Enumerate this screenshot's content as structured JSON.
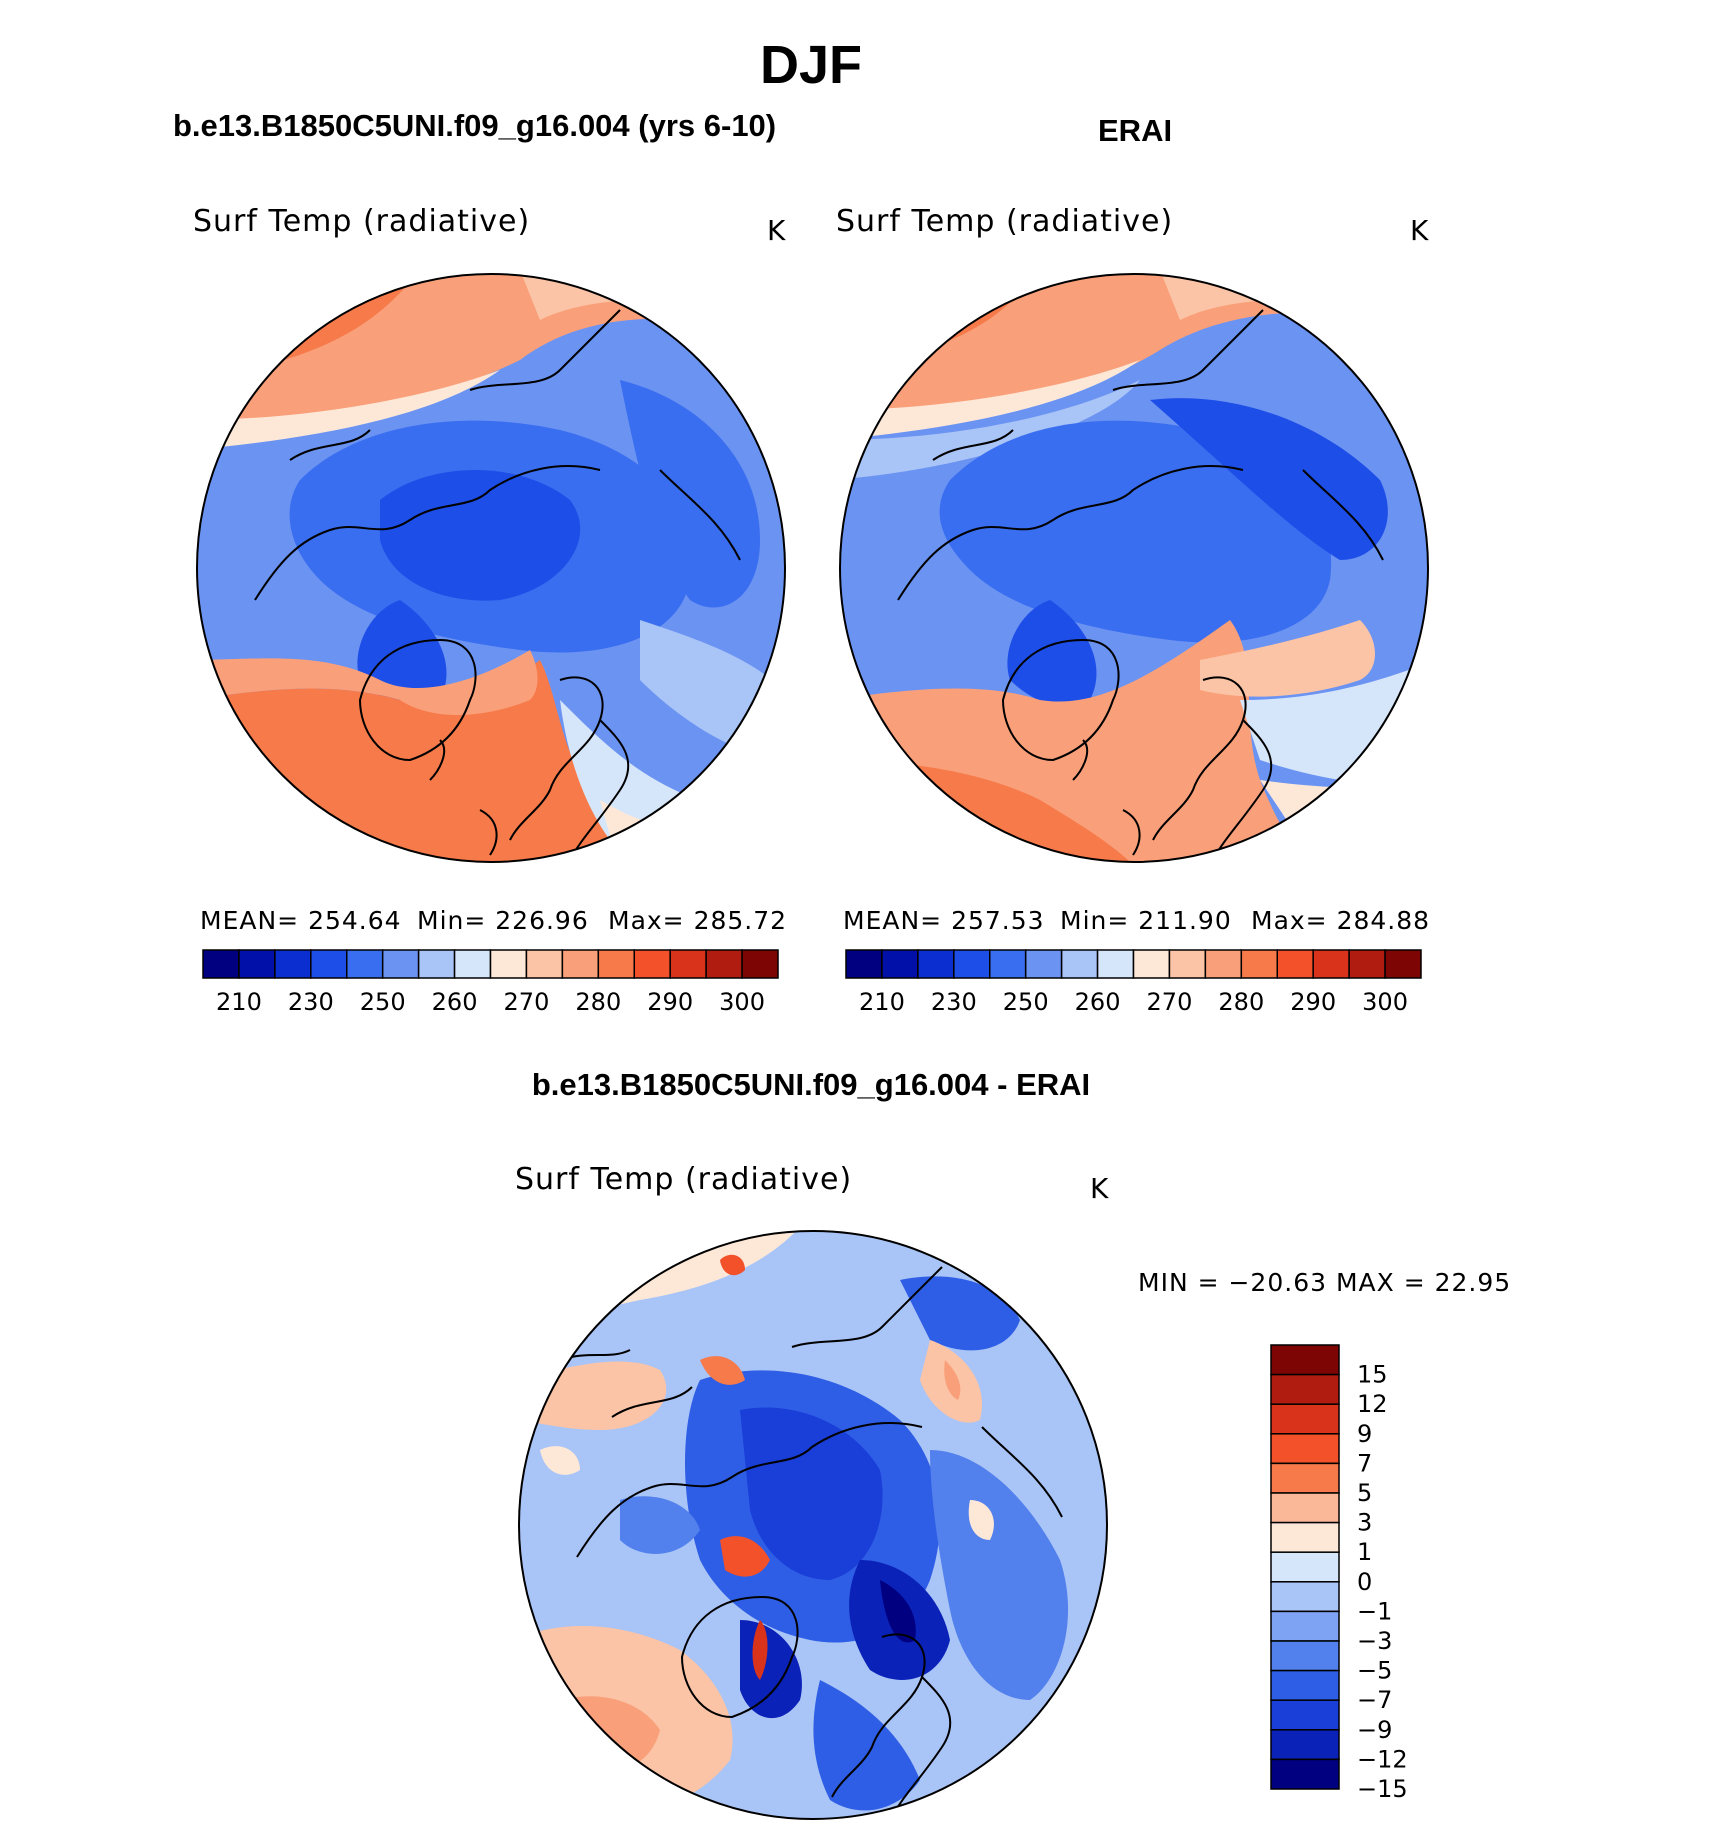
{
  "main_title": "DJF",
  "panel_left": {
    "title": "b.e13.B1850C5UNI.f09_g16.004 (yrs 6-10)",
    "variable": "Surf Temp (radiative)",
    "units": "K",
    "stats": {
      "mean": "MEAN= 254.64",
      "min": "Min= 226.96",
      "max": "Max= 285.72"
    }
  },
  "panel_right": {
    "title": "ERAI",
    "variable": "Surf Temp (radiative)",
    "units": "K",
    "stats": {
      "mean": "MEAN= 257.53",
      "min": "Min= 211.90",
      "max": "Max= 284.88"
    }
  },
  "panel_diff": {
    "title": "b.e13.B1850C5UNI.f09_g16.004 - ERAI",
    "variable": "Surf Temp (radiative)",
    "units": "K",
    "minmax": "MIN = −20.63 MAX =   22.95"
  },
  "chart_data": [
    {
      "type": "heatmap",
      "projection": "north-polar-stereographic",
      "title": "b.e13.B1850C5UNI.f09_g16.004 (yrs 6-10)",
      "variable": "Surf Temp (radiative)",
      "units": "K",
      "mean": 254.64,
      "min": 226.96,
      "max": 285.72,
      "colorbar_labels": [
        "210",
        "230",
        "250",
        "260",
        "270",
        "280",
        "290",
        "300"
      ],
      "colors": [
        "#000080",
        "#0010a8",
        "#0a2ed0",
        "#1e4ee8",
        "#3a6ef0",
        "#6b93f2",
        "#a9c4f6",
        "#d6e6fa",
        "#fde8d8",
        "#fbc4a6",
        "#f9a07a",
        "#f67a4a",
        "#f2512a",
        "#d9331c",
        "#b01d10",
        "#7d0605"
      ]
    },
    {
      "type": "heatmap",
      "projection": "north-polar-stereographic",
      "title": "ERAI",
      "variable": "Surf Temp (radiative)",
      "units": "K",
      "mean": 257.53,
      "min": 211.9,
      "max": 284.88,
      "colorbar_labels": [
        "210",
        "230",
        "250",
        "260",
        "270",
        "280",
        "290",
        "300"
      ],
      "colors": [
        "#000080",
        "#0010a8",
        "#0a2ed0",
        "#1e4ee8",
        "#3a6ef0",
        "#6b93f2",
        "#a9c4f6",
        "#d6e6fa",
        "#fde8d8",
        "#fbc4a6",
        "#f9a07a",
        "#f67a4a",
        "#f2512a",
        "#d9331c",
        "#b01d10",
        "#7d0605"
      ]
    },
    {
      "type": "heatmap",
      "projection": "north-polar-stereographic",
      "title": "b.e13.B1850C5UNI.f09_g16.004 - ERAI",
      "variable": "Surf Temp (radiative)",
      "units": "K",
      "min": -20.63,
      "max": 22.95,
      "colorbar_labels": [
        "15",
        "12",
        "9",
        "7",
        "5",
        "3",
        "1",
        "0",
        "−1",
        "−3",
        "−5",
        "−7",
        "−9",
        "−12",
        "−15"
      ],
      "colors": [
        "#7d0605",
        "#b01d10",
        "#d9331c",
        "#f2512a",
        "#f67a4a",
        "#fbb899",
        "#fde8d8",
        "#d6e6fa",
        "#a9c4f6",
        "#7ea3f2",
        "#5280ec",
        "#2f5ee6",
        "#1a3ed8",
        "#0a22b8",
        "#000080"
      ]
    }
  ]
}
